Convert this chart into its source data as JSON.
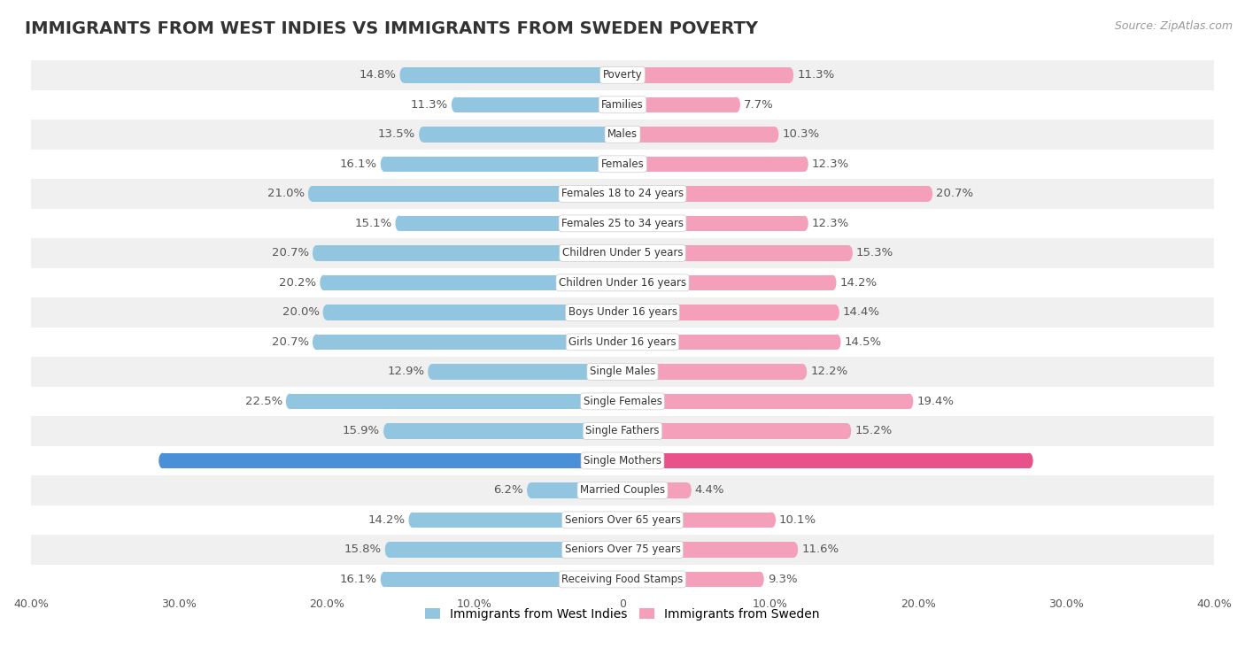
{
  "title": "IMMIGRANTS FROM WEST INDIES VS IMMIGRANTS FROM SWEDEN POVERTY",
  "source": "Source: ZipAtlas.com",
  "categories": [
    "Poverty",
    "Families",
    "Males",
    "Females",
    "Females 18 to 24 years",
    "Females 25 to 34 years",
    "Children Under 5 years",
    "Children Under 16 years",
    "Boys Under 16 years",
    "Girls Under 16 years",
    "Single Males",
    "Single Females",
    "Single Fathers",
    "Single Mothers",
    "Married Couples",
    "Seniors Over 65 years",
    "Seniors Over 75 years",
    "Receiving Food Stamps"
  ],
  "west_indies": [
    14.8,
    11.3,
    13.5,
    16.1,
    21.0,
    15.1,
    20.7,
    20.2,
    20.0,
    20.7,
    12.9,
    22.5,
    15.9,
    31.1,
    6.2,
    14.2,
    15.8,
    16.1
  ],
  "sweden": [
    11.3,
    7.7,
    10.3,
    12.3,
    20.7,
    12.3,
    15.3,
    14.2,
    14.4,
    14.5,
    12.2,
    19.4,
    15.2,
    27.5,
    4.4,
    10.1,
    11.6,
    9.3
  ],
  "west_indies_color": "#92C5E0",
  "sweden_color": "#F4A0BB",
  "west_indies_highlight_color": "#4A90D9",
  "sweden_highlight_color": "#E8518A",
  "background_color": "#FFFFFF",
  "row_light_color": "#FFFFFF",
  "row_dark_color": "#F0F0F0",
  "axis_max": 40.0,
  "bar_height": 0.52,
  "label_fontsize": 9.5,
  "category_fontsize": 8.5,
  "title_fontsize": 14,
  "source_fontsize": 9,
  "legend_label_west_indies": "Immigrants from West Indies",
  "legend_label_sweden": "Immigrants from Sweden",
  "highlight_index": 13,
  "xticks": [
    -40,
    -30,
    -20,
    -10,
    0,
    10,
    20,
    30,
    40
  ],
  "xtick_labels": [
    "40.0%",
    "30.0%",
    "20.0%",
    "10.0%",
    "0",
    "10.0%",
    "20.0%",
    "30.0%",
    "40.0%"
  ]
}
